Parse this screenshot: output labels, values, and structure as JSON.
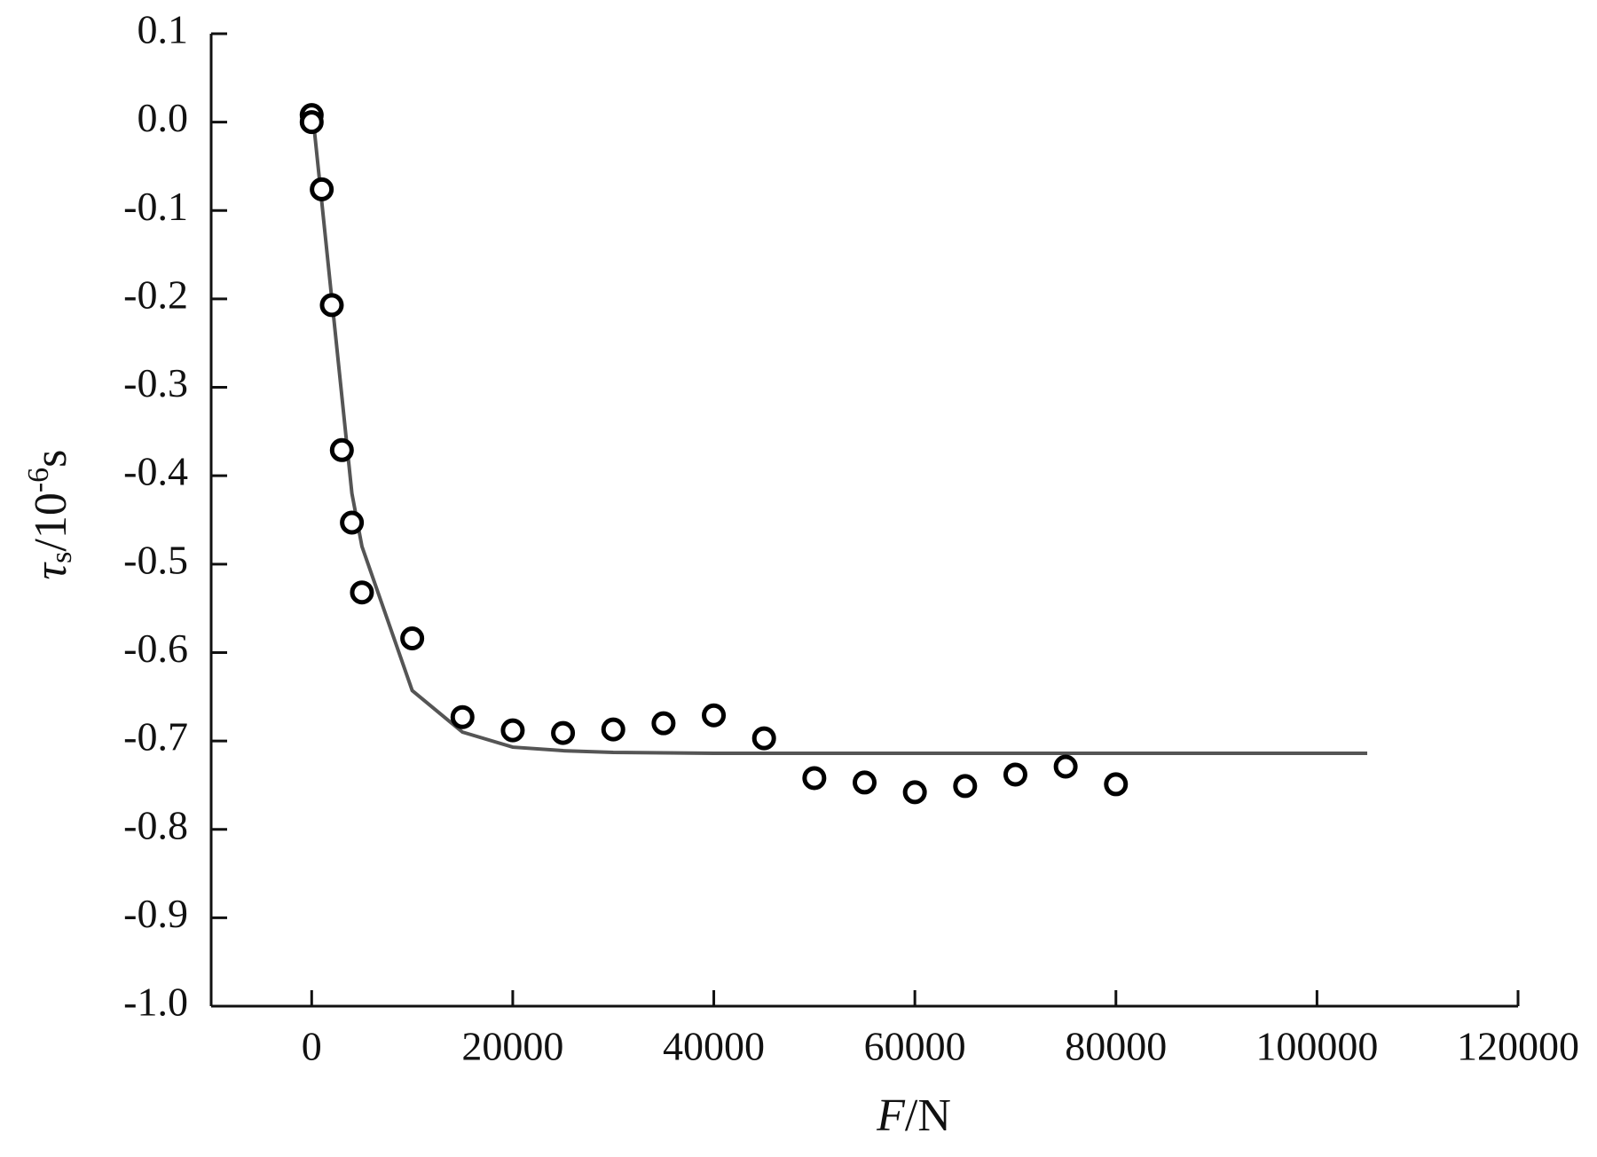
{
  "chart_data": {
    "type": "scatter",
    "x_label": {
      "var": "F",
      "unit": "/N"
    },
    "y_label": {
      "var": "τ",
      "sub": "s",
      "mid": "/10",
      "sup": "-6",
      "unit": "s"
    },
    "xlim": [
      -10000,
      120000
    ],
    "xticks": [
      0,
      20000,
      40000,
      60000,
      80000,
      100000,
      120000
    ],
    "ylim": [
      -1.0,
      0.1
    ],
    "yticks": [
      0.1,
      {
        "value": 0,
        "label": "0.0"
      },
      -0.1,
      -0.2,
      -0.3,
      -0.4,
      -0.5,
      -0.6,
      -0.7,
      -0.8,
      -0.9,
      {
        "value": -1,
        "label": "-1.0"
      }
    ],
    "series": [
      {
        "style": "line",
        "color": "#555555",
        "x": [
          0,
          2000,
          4000,
          5000,
          10000,
          15000,
          20000,
          25000,
          30000,
          40000,
          105000
        ],
        "values": [
          0.02,
          -0.2,
          -0.42,
          -0.48,
          -0.643,
          -0.69,
          -0.707,
          -0.711,
          -0.713,
          -0.714,
          -0.714
        ]
      },
      {
        "style": "marker",
        "color": "#000000",
        "x": [
          0,
          0,
          1000,
          2000,
          3000,
          4000,
          5000,
          10000,
          15000,
          20000,
          25000,
          30000,
          35000,
          40000,
          45000,
          50000,
          55000,
          60000,
          65000,
          70000,
          75000,
          80000
        ],
        "values": [
          0.008,
          0,
          -0.076,
          -0.207,
          -0.371,
          -0.453,
          -0.532,
          -0.584,
          -0.673,
          -0.688,
          -0.691,
          -0.687,
          -0.68,
          -0.671,
          -0.697,
          -0.742,
          -0.747,
          -0.758,
          -0.751,
          -0.738,
          -0.729,
          -0.749
        ]
      }
    ]
  }
}
